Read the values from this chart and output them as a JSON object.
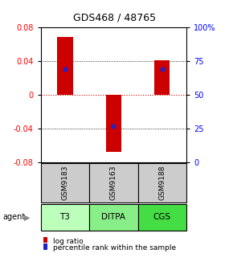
{
  "title": "GDS468 / 48765",
  "samples": [
    "GSM9183",
    "GSM9163",
    "GSM9188"
  ],
  "agents": [
    "T3",
    "DITPA",
    "CGS"
  ],
  "bar_tops": [
    0.068,
    0.0,
    0.041
  ],
  "bar_bottoms": [
    0.0,
    -0.068,
    0.0
  ],
  "percentile_ranks": [
    0.03,
    -0.038,
    0.03
  ],
  "ylim": [
    -0.08,
    0.08
  ],
  "yticks_left": [
    -0.08,
    -0.04,
    0.0,
    0.04,
    0.08
  ],
  "ytick_left_labels": [
    "-0.08",
    "-0.04",
    "0",
    "0.04",
    "0.08"
  ],
  "yticks_right_pct": [
    0,
    25,
    50,
    75,
    100
  ],
  "bar_color": "#cc0000",
  "dot_color": "#2222cc",
  "zero_line_color": "#cc0000",
  "agent_colors": [
    "#bbffbb",
    "#88ee88",
    "#44dd44"
  ],
  "sample_bg_color": "#cccccc",
  "legend_bar_color": "#cc0000",
  "legend_dot_color": "#2222cc"
}
